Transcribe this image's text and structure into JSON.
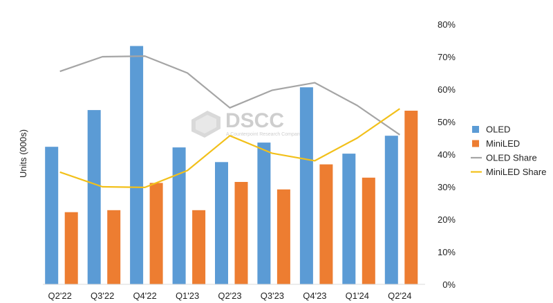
{
  "chart_data": {
    "type": "bar",
    "categories": [
      "Q2'22",
      "Q3'22",
      "Q4'22",
      "Q1'23",
      "Q2'23",
      "Q3'23",
      "Q4'23",
      "Q1'24",
      "Q2'24"
    ],
    "ylabel": "Units  (000s)",
    "y2_ticks": [
      "0%",
      "10%",
      "20%",
      "30%",
      "40%",
      "50%",
      "60%",
      "70%",
      "80%"
    ],
    "y2lim": [
      0,
      80
    ],
    "bar_series": [
      {
        "name": "OLED",
        "color": "#5b9bd5",
        "values": [
          42.3,
          53.6,
          73.3,
          42.1,
          37.6,
          43.6,
          60.6,
          40.2,
          45.7
        ]
      },
      {
        "name": "MiniLED",
        "color": "#ed7d31",
        "values": [
          22.2,
          22.8,
          31.2,
          22.8,
          31.5,
          29.2,
          36.9,
          32.8,
          53.4
        ]
      }
    ],
    "line_series": [
      {
        "name": "OLED Share",
        "color": "#a5a5a5",
        "values": [
          65.5,
          70.0,
          70.2,
          65.0,
          54.3,
          59.7,
          62.0,
          55.0,
          46.0
        ]
      },
      {
        "name": "MiniLED Share",
        "color": "#f2c01a",
        "values": [
          34.5,
          30.0,
          29.8,
          35.0,
          45.7,
          40.3,
          38.0,
          45.0,
          54.0
        ]
      }
    ],
    "legend": [
      {
        "name": "OLED",
        "kind": "bar",
        "color": "#5b9bd5"
      },
      {
        "name": "MiniLED",
        "kind": "bar",
        "color": "#ed7d31"
      },
      {
        "name": "OLED Share",
        "kind": "line",
        "color": "#a5a5a5"
      },
      {
        "name": "MiniLED Share",
        "kind": "line",
        "color": "#f2c01a"
      }
    ],
    "legend_position": "right",
    "grid": false
  },
  "watermark": {
    "brand": "DSCC",
    "tagline": "A Counterpoint Research Company"
  }
}
